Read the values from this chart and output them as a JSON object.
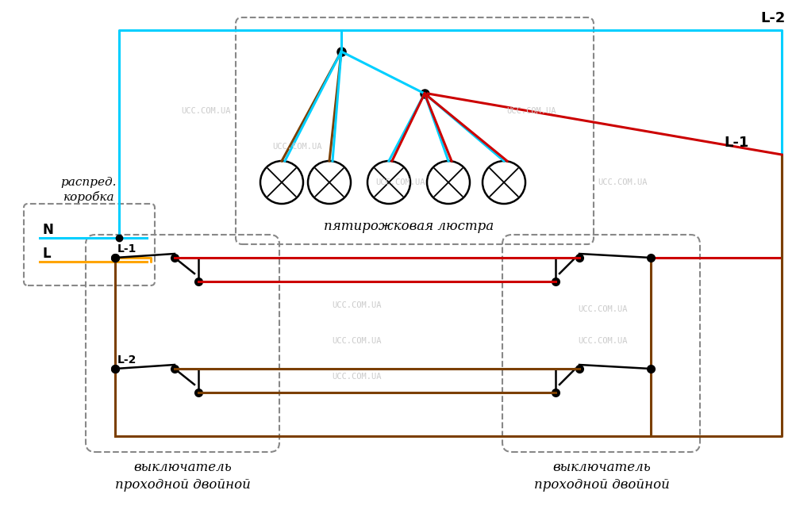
{
  "bg": "#ffffff",
  "cyan": "#00cfff",
  "red": "#cc0000",
  "brown": "#7B3F00",
  "orange": "#FFA500",
  "black": "#000000",
  "gray": "#888888",
  "wm": "UCC.COM.UA",
  "wm_color": "#cccccc",
  "label_distrib_1": "распред.",
  "label_distrib_2": "коробка",
  "label_N": "N",
  "label_L": "L",
  "label_chandelier": "пятирожковая люстра",
  "label_sw1_1": "выключатель",
  "label_sw1_2": "проходной двойной",
  "label_sw2_1": "выключатель",
  "label_sw2_2": "проходной двойной",
  "label_L1": "L-1",
  "label_L2": "L-2",
  "label_L1_tr": "L-1",
  "label_L2_tr": "L-2"
}
